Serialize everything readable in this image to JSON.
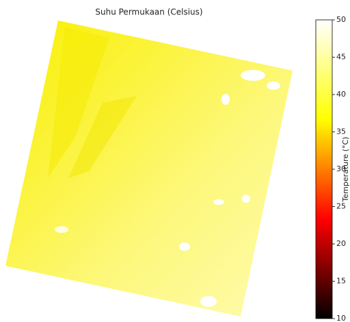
{
  "chart_data": {
    "type": "image",
    "title": "Suhu Permukaan (Celsius)",
    "colorbar_label": "Temperature (°C)",
    "colormap": [
      "#000000",
      "#ff0000",
      "#ffff00",
      "#ffffff"
    ],
    "clim": [
      10,
      50
    ],
    "cticks": [
      10,
      15,
      20,
      25,
      30,
      35,
      40,
      45,
      50
    ]
  }
}
